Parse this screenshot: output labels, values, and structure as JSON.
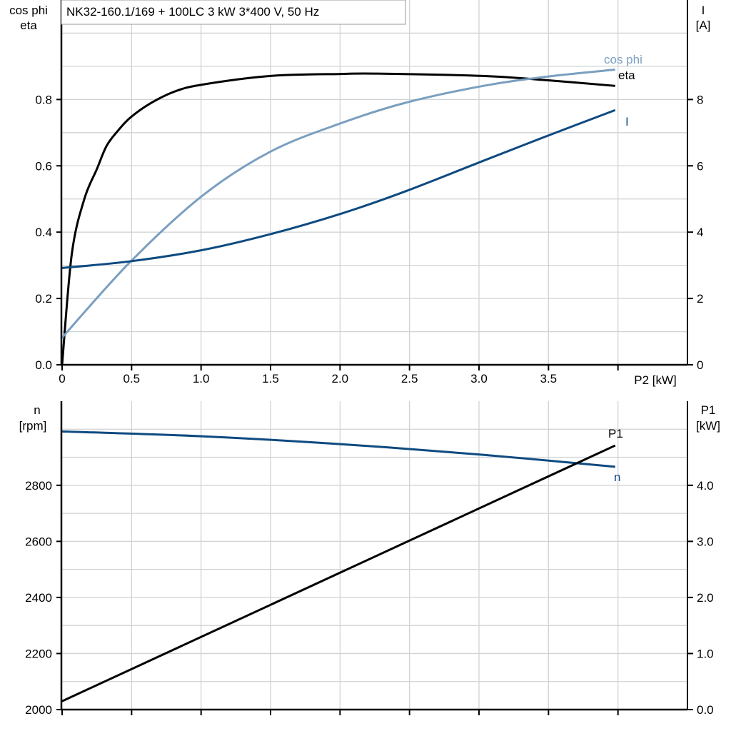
{
  "colors": {
    "eta": "#000000",
    "cos_phi": "#7a9fc0",
    "I": "#0e4a80",
    "n": "#0e4a80",
    "P1": "#000000",
    "grid": "#d0d3d6"
  },
  "chart_data": [
    {
      "type": "line",
      "title": "NK32-160.1/169 + 100LC   3 kW   3*400 V, 50 Hz",
      "xlabel": "P2 [kW]",
      "ylabel_left": [
        "cos phi",
        "eta"
      ],
      "ylabel_right": [
        "I",
        "[A]"
      ],
      "xlim": [
        0,
        4.5
      ],
      "ylim_left": [
        0,
        1.1
      ],
      "ylim_right": [
        0,
        11
      ],
      "grid": true,
      "x_ticks": [
        "0",
        "0.5",
        "1.0",
        "1.5",
        "2.0",
        "2.5",
        "3.0",
        "3.5"
      ],
      "y_ticks_left": [
        "0.0",
        "0.2",
        "0.4",
        "0.6",
        "0.8"
      ],
      "y_ticks_right": [
        "0",
        "2",
        "4",
        "6",
        "8"
      ],
      "series": [
        {
          "name": "eta",
          "axis": "left",
          "color_key": "eta",
          "x": [
            0,
            0.07,
            0.16,
            0.25,
            0.32,
            0.4,
            0.49,
            0.63,
            0.81,
            1.01,
            1.5,
            2.01,
            2.27,
            3.03,
            3.49,
            3.98
          ],
          "y": [
            0,
            0.335,
            0.5,
            0.59,
            0.66,
            0.705,
            0.745,
            0.787,
            0.824,
            0.845,
            0.871,
            0.877,
            0.878,
            0.871,
            0.858,
            0.841
          ]
        },
        {
          "name": "cos phi",
          "axis": "left",
          "color_key": "cos_phi",
          "x": [
            0,
            0.49,
            1.01,
            1.5,
            2.01,
            2.47,
            3.03,
            3.49,
            3.98
          ],
          "y": [
            0.082,
            0.31,
            0.51,
            0.643,
            0.729,
            0.79,
            0.841,
            0.869,
            0.89
          ]
        },
        {
          "name": "I",
          "axis": "right",
          "color_key": "I",
          "x": [
            0,
            0.49,
            1.01,
            1.5,
            2.01,
            2.47,
            3.03,
            3.49,
            3.98
          ],
          "y": [
            2.92,
            3.12,
            3.46,
            3.94,
            4.56,
            5.23,
            6.15,
            6.9,
            7.68
          ]
        }
      ]
    },
    {
      "type": "line",
      "ylabel_left": [
        "n",
        "[rpm]"
      ],
      "ylabel_right": [
        "P1",
        "[kW]"
      ],
      "xlim": [
        0,
        4.5
      ],
      "ylim_left": [
        2000,
        3100
      ],
      "ylim_right": [
        0,
        5.5
      ],
      "grid": true,
      "y_ticks_left": [
        "2000",
        "2200",
        "2400",
        "2600",
        "2800"
      ],
      "y_ticks_right": [
        "0.0",
        "1.0",
        "2.0",
        "3.0",
        "4.0"
      ],
      "series": [
        {
          "name": "n",
          "axis": "left",
          "color_key": "n",
          "x": [
            0,
            1,
            2,
            3,
            3.98
          ],
          "y": [
            2992,
            2975,
            2947,
            2910,
            2866
          ]
        },
        {
          "name": "P1",
          "axis": "right",
          "color_key": "P1",
          "x": [
            0,
            3.98
          ],
          "y": [
            0.15,
            4.71
          ]
        }
      ]
    }
  ]
}
